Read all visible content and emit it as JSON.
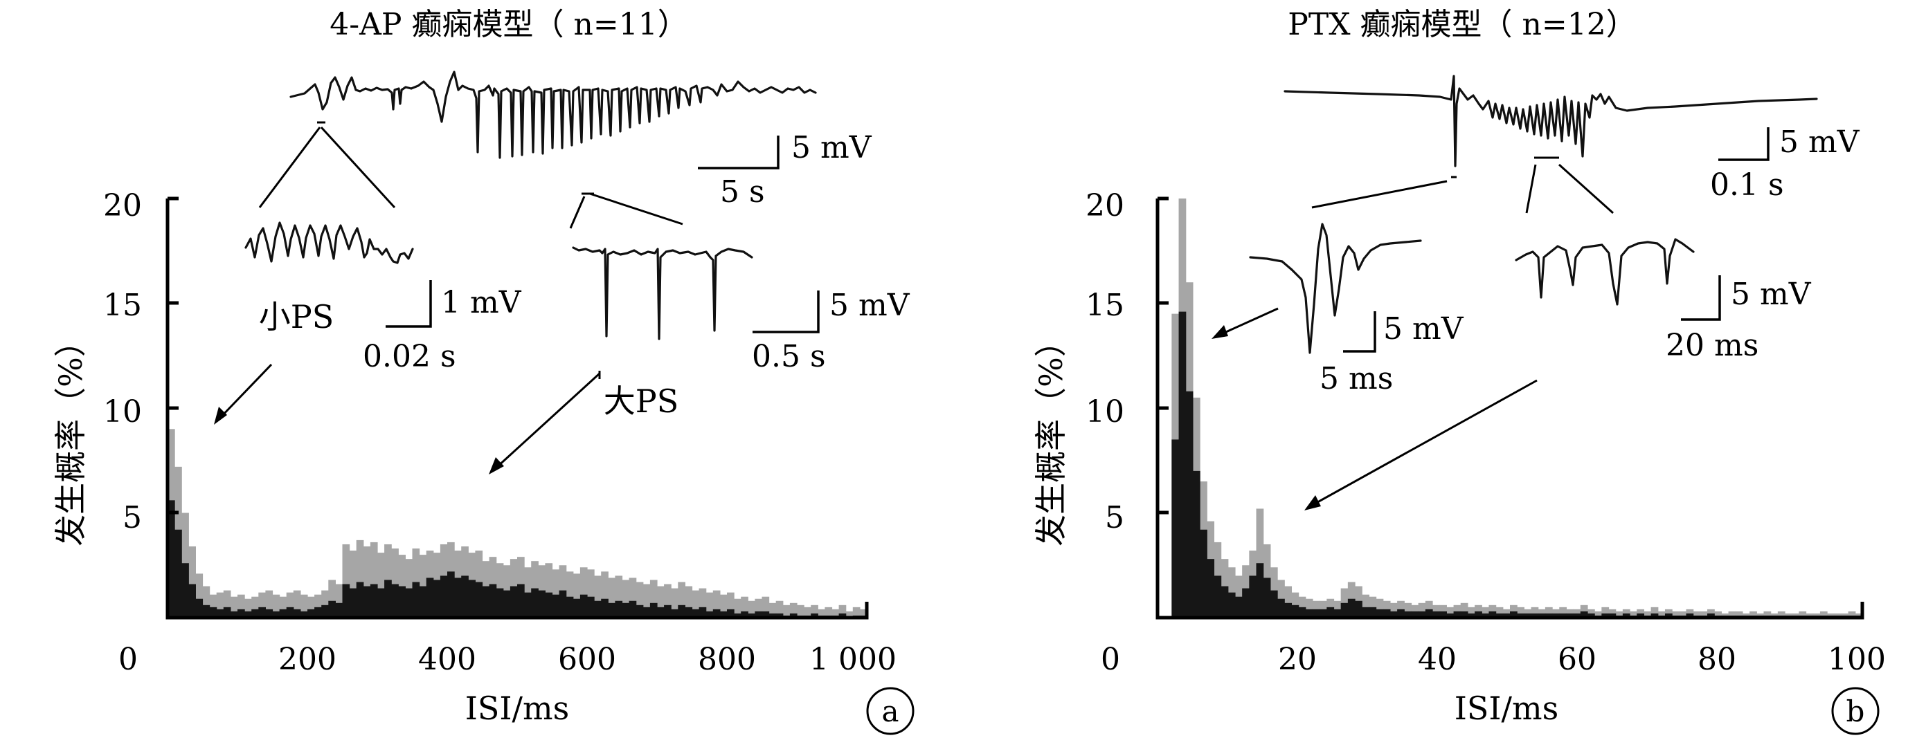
{
  "chart_data": [
    {
      "type": "bar",
      "panel_label": "a",
      "title": "4-AP 癫痫模型（ n=11）",
      "xlabel": "ISI/ms",
      "ylabel": "发生概率（%）",
      "xlim": [
        0,
        1000
      ],
      "ylim": [
        0,
        20
      ],
      "x_ticks": [
        "0",
        "200",
        "400",
        "600",
        "800",
        "1 000"
      ],
      "y_ticks": [
        "5",
        "10",
        "15",
        "20"
      ],
      "bin_width_ms": 10,
      "series": [
        {
          "color": "#a6a6a6",
          "values": [
            9.0,
            7.2,
            5.0,
            3.4,
            2.1,
            1.5,
            1.1,
            1.2,
            1.3,
            1.0,
            1.1,
            0.9,
            1.0,
            1.2,
            1.3,
            1.1,
            1.0,
            1.2,
            1.3,
            1.1,
            1.0,
            1.1,
            1.3,
            1.8,
            1.6,
            3.5,
            3.2,
            3.7,
            3.4,
            3.6,
            3.1,
            3.5,
            3.3,
            3.0,
            2.8,
            3.3,
            3.0,
            3.2,
            3.1,
            3.5,
            3.6,
            3.2,
            3.4,
            3.1,
            3.2,
            2.7,
            2.9,
            2.6,
            2.5,
            2.8,
            2.9,
            2.4,
            2.7,
            2.5,
            2.6,
            2.3,
            2.5,
            2.2,
            2.1,
            2.4,
            2.3,
            2.0,
            2.2,
            1.9,
            2.0,
            1.8,
            1.9,
            1.7,
            1.6,
            1.8,
            1.5,
            1.6,
            1.4,
            1.7,
            1.5,
            1.3,
            1.4,
            1.2,
            1.3,
            1.1,
            1.2,
            0.9,
            1.0,
            0.8,
            0.9,
            1.0,
            0.7,
            0.8,
            0.6,
            0.7,
            0.6,
            0.5,
            0.6,
            0.4,
            0.5,
            0.4,
            0.6,
            0.3,
            0.5,
            0.4
          ]
        },
        {
          "color": "#161616",
          "values": [
            5.6,
            4.2,
            2.6,
            1.6,
            0.9,
            0.6,
            0.5,
            0.4,
            0.5,
            0.3,
            0.4,
            0.3,
            0.4,
            0.5,
            0.4,
            0.3,
            0.4,
            0.5,
            0.4,
            0.3,
            0.4,
            0.5,
            0.6,
            0.8,
            0.7,
            1.6,
            1.4,
            1.7,
            1.5,
            1.6,
            1.4,
            1.8,
            1.6,
            1.5,
            1.4,
            1.7,
            1.5,
            1.9,
            1.8,
            2.0,
            2.2,
            1.9,
            2.0,
            1.8,
            1.7,
            1.5,
            1.6,
            1.4,
            1.3,
            1.5,
            1.6,
            1.2,
            1.4,
            1.3,
            1.2,
            1.1,
            1.3,
            1.0,
            0.9,
            1.1,
            1.0,
            0.8,
            0.9,
            0.7,
            0.8,
            0.7,
            0.8,
            0.6,
            0.5,
            0.7,
            0.5,
            0.6,
            0.4,
            0.6,
            0.5,
            0.4,
            0.5,
            0.3,
            0.4,
            0.3,
            0.4,
            0.2,
            0.3,
            0.2,
            0.3,
            0.3,
            0.2,
            0.2,
            0.1,
            0.2,
            0.1,
            0.1,
            0.2,
            0.1,
            0.1,
            0.1,
            0.2,
            0.05,
            0.1,
            0.1
          ]
        }
      ],
      "annotations": [
        "小PS",
        "大PS"
      ],
      "scale_bars": [
        "5 mV",
        "5 s",
        "1 mV",
        "0.02 s",
        "5 mV",
        "0.5 s"
      ]
    },
    {
      "type": "bar",
      "panel_label": "b",
      "title": "PTX 癫痫模型（ n=12）",
      "xlabel": "ISI/ms",
      "ylabel": "发生概率（%）",
      "xlim": [
        0,
        100
      ],
      "ylim": [
        0,
        20
      ],
      "x_ticks": [
        "0",
        "20",
        "40",
        "60",
        "80",
        "100"
      ],
      "y_ticks": [
        "5",
        "10",
        "15",
        "20"
      ],
      "bin_width_ms": 1,
      "series": [
        {
          "color": "#a6a6a6",
          "values": [
            0,
            0,
            14.5,
            20,
            16,
            10.5,
            6.5,
            4.6,
            3.6,
            2.8,
            2.4,
            2.0,
            2.5,
            3.2,
            5.2,
            3.5,
            2.4,
            1.8,
            1.5,
            1.2,
            1.0,
            0.9,
            0.8,
            0.8,
            0.9,
            0.8,
            1.4,
            1.7,
            1.5,
            1.1,
            1.0,
            0.9,
            0.8,
            0.7,
            0.8,
            0.7,
            0.6,
            0.7,
            0.8,
            0.6,
            0.6,
            0.5,
            0.6,
            0.7,
            0.5,
            0.6,
            0.5,
            0.6,
            0.5,
            0.4,
            0.6,
            0.5,
            0.4,
            0.5,
            0.4,
            0.5,
            0.4,
            0.5,
            0.4,
            0.4,
            0.6,
            0.4,
            0.3,
            0.5,
            0.4,
            0.3,
            0.4,
            0.3,
            0.4,
            0.3,
            0.5,
            0.3,
            0.4,
            0.3,
            0.3,
            0.4,
            0.3,
            0.3,
            0.4,
            0.3,
            0.2,
            0.3,
            0.3,
            0.2,
            0.3,
            0.2,
            0.3,
            0.2,
            0.3,
            0.2,
            0.2,
            0.3,
            0.2,
            0.2,
            0.3,
            0.2,
            0.2,
            0.2,
            0.3,
            0.2
          ]
        },
        {
          "color": "#161616",
          "values": [
            0,
            0,
            8.5,
            14.6,
            10.8,
            7.0,
            4.2,
            2.8,
            2.0,
            1.5,
            1.2,
            1.0,
            1.4,
            2.0,
            2.6,
            1.9,
            1.3,
            0.9,
            0.7,
            0.6,
            0.5,
            0.4,
            0.4,
            0.4,
            0.5,
            0.4,
            0.7,
            0.9,
            0.8,
            0.5,
            0.5,
            0.4,
            0.4,
            0.3,
            0.4,
            0.3,
            0.3,
            0.3,
            0.4,
            0.3,
            0.3,
            0.2,
            0.3,
            0.3,
            0.2,
            0.3,
            0.2,
            0.3,
            0.2,
            0.2,
            0.3,
            0.2,
            0.2,
            0.2,
            0.2,
            0.2,
            0.2,
            0.2,
            0.2,
            0.2,
            0.3,
            0.2,
            0.1,
            0.2,
            0.2,
            0.1,
            0.2,
            0.1,
            0.2,
            0.1,
            0.2,
            0.1,
            0.2,
            0.1,
            0.1,
            0.2,
            0.1,
            0.1,
            0.2,
            0.1,
            0.1,
            0.1,
            0.1,
            0.1,
            0.1,
            0.1,
            0.1,
            0.1,
            0.1,
            0.1,
            0.1,
            0.1,
            0.1,
            0.1,
            0.1,
            0.1,
            0.1,
            0.1,
            0.1,
            0.1
          ]
        }
      ],
      "scale_bars": [
        "5 mV",
        "0.1 s",
        "5 mV",
        "5 ms",
        "5 mV",
        "20 ms"
      ]
    }
  ]
}
